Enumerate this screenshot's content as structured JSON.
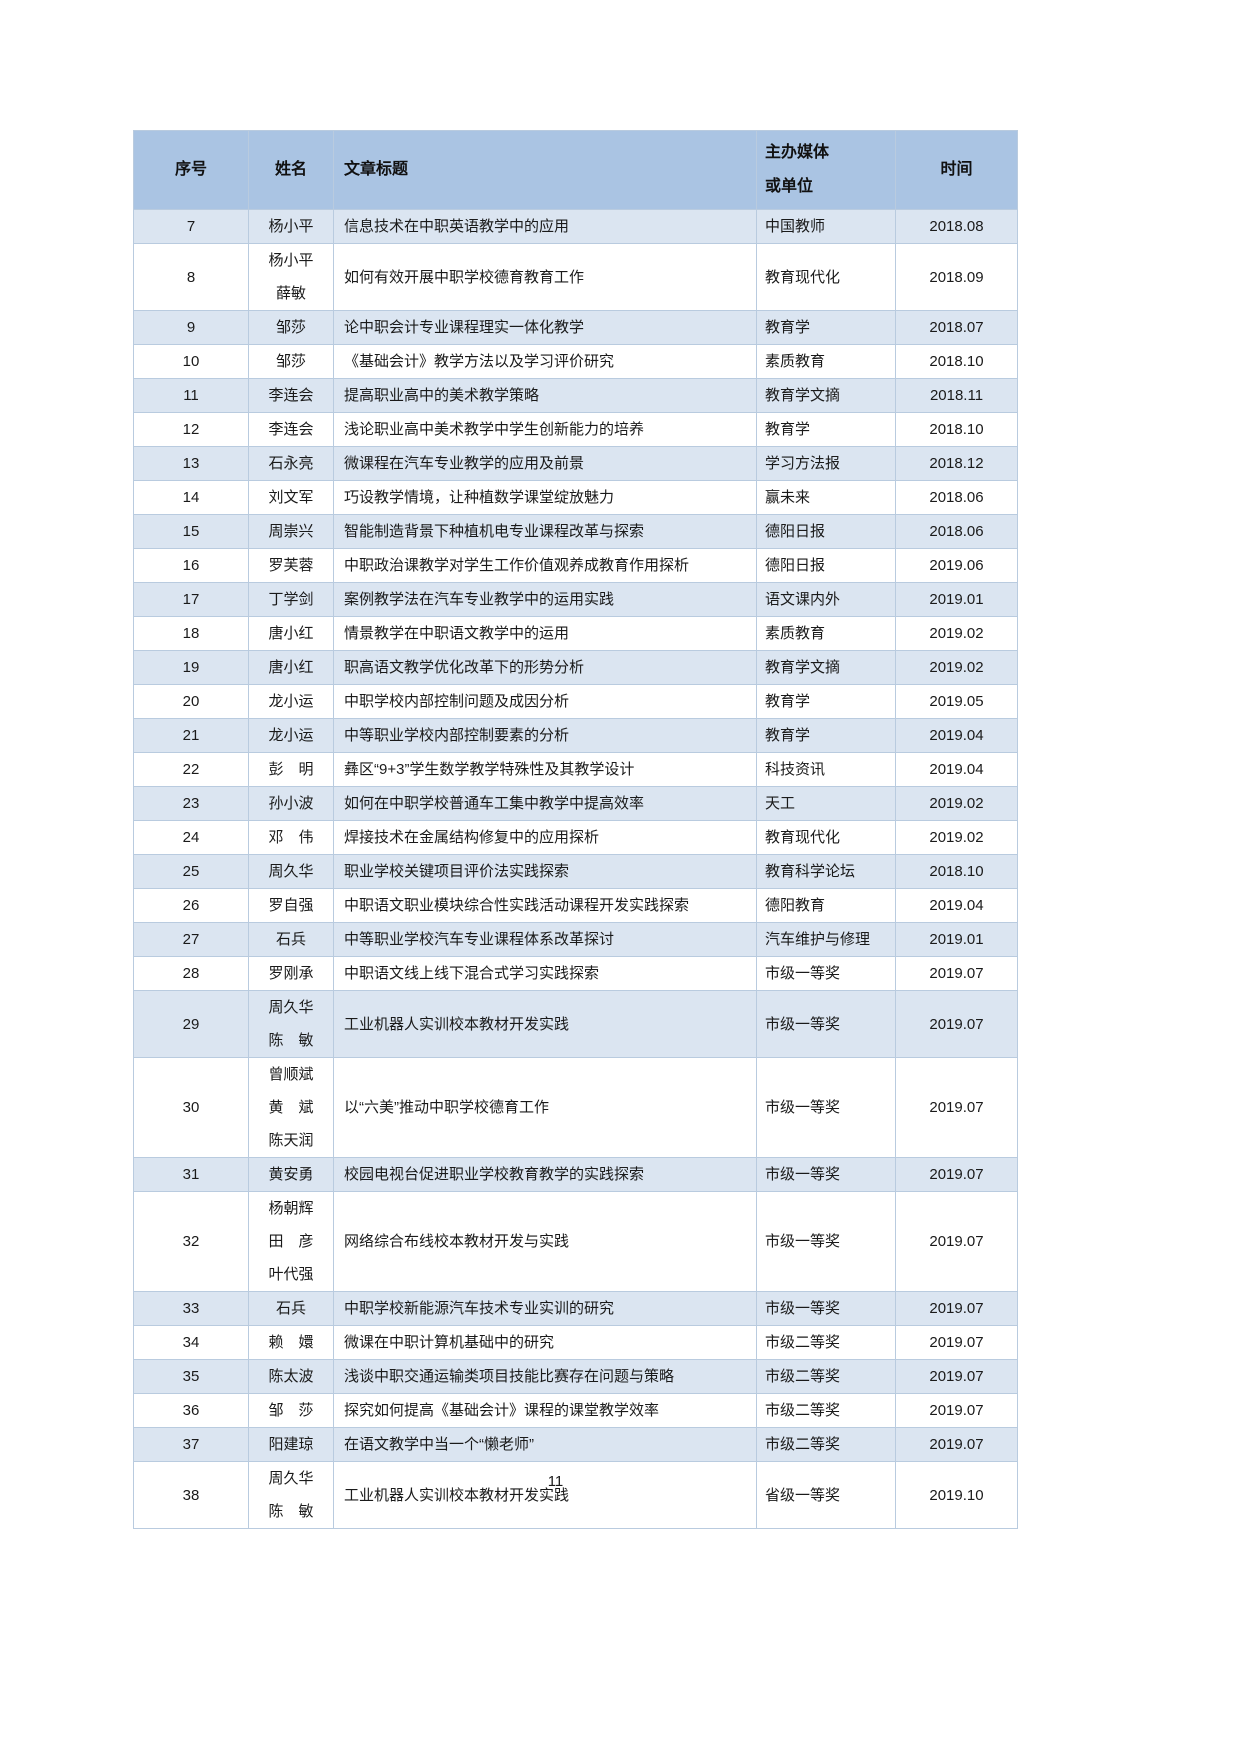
{
  "page": {
    "number": "11"
  },
  "colors": {
    "header_bg": "#aac4e3",
    "alt_row_bg": "#dbe5f1",
    "row_bg": "#ffffff",
    "border": "#b9cbdf",
    "text": "#1a1a1a"
  },
  "table": {
    "columns": [
      {
        "key": "no",
        "label": "序号"
      },
      {
        "key": "name",
        "label": "姓名"
      },
      {
        "key": "title",
        "label": "文章标题"
      },
      {
        "key": "media",
        "label": "主办媒体\n或单位"
      },
      {
        "key": "date",
        "label": "时间"
      }
    ],
    "rows": [
      {
        "no": "7",
        "name": "杨小平",
        "title": "信息技术在中职英语教学中的应用",
        "media": "中国教师",
        "date": "2018.08"
      },
      {
        "no": "8",
        "name": "杨小平\n薛敏",
        "title": "如何有效开展中职学校德育教育工作",
        "media": "教育现代化",
        "date": "2018.09"
      },
      {
        "no": "9",
        "name": "邹莎",
        "title": "论中职会计专业课程理实一体化教学",
        "media": "教育学",
        "date": "2018.07"
      },
      {
        "no": "10",
        "name": "邹莎",
        "title": "《基础会计》教学方法以及学习评价研究",
        "media": "素质教育",
        "date": "2018.10"
      },
      {
        "no": "11",
        "name": "李连会",
        "title": "提高职业高中的美术教学策略",
        "media": "教育学文摘",
        "date": "2018.11"
      },
      {
        "no": "12",
        "name": "李连会",
        "title": "浅论职业高中美术教学中学生创新能力的培养",
        "media": "教育学",
        "date": "2018.10"
      },
      {
        "no": "13",
        "name": "石永亮",
        "title": "微课程在汽车专业教学的应用及前景",
        "media": "学习方法报",
        "date": "2018.12"
      },
      {
        "no": "14",
        "name": "刘文军",
        "title": "巧设教学情境，让种植数学课堂绽放魅力",
        "media": "赢未来",
        "date": "2018.06"
      },
      {
        "no": "15",
        "name": "周崇兴",
        "title": "智能制造背景下种植机电专业课程改革与探索",
        "media": "德阳日报",
        "date": "2018.06"
      },
      {
        "no": "16",
        "name": "罗芙蓉",
        "title": "中职政治课教学对学生工作价值观养成教育作用探析",
        "media": "德阳日报",
        "date": "2019.06"
      },
      {
        "no": "17",
        "name": "丁学剑",
        "title": "案例教学法在汽车专业教学中的运用实践",
        "media": "语文课内外",
        "date": "2019.01"
      },
      {
        "no": "18",
        "name": "唐小红",
        "title": "情景教学在中职语文教学中的运用",
        "media": "素质教育",
        "date": "2019.02"
      },
      {
        "no": "19",
        "name": "唐小红",
        "title": "职高语文教学优化改革下的形势分析",
        "media": "教育学文摘",
        "date": "2019.02"
      },
      {
        "no": "20",
        "name": "龙小运",
        "title": "中职学校内部控制问题及成因分析",
        "media": "教育学",
        "date": "2019.05"
      },
      {
        "no": "21",
        "name": "龙小运",
        "title": "中等职业学校内部控制要素的分析",
        "media": "教育学",
        "date": "2019.04"
      },
      {
        "no": "22",
        "name": "彭　明",
        "title": "彝区“9+3”学生数学教学特殊性及其教学设计",
        "media": "科技资讯",
        "date": "2019.04"
      },
      {
        "no": "23",
        "name": "孙小波",
        "title": "如何在中职学校普通车工集中教学中提高效率",
        "media": "天工",
        "date": "2019.02"
      },
      {
        "no": "24",
        "name": "邓　伟",
        "title": "焊接技术在金属结构修复中的应用探析",
        "media": "教育现代化",
        "date": "2019.02"
      },
      {
        "no": "25",
        "name": "周久华",
        "title": "职业学校关键项目评价法实践探索",
        "media": "教育科学论坛",
        "date": "2018.10"
      },
      {
        "no": "26",
        "name": "罗自强",
        "title": "中职语文职业模块综合性实践活动课程开发实践探索",
        "media": "德阳教育",
        "date": "2019.04"
      },
      {
        "no": "27",
        "name": "石兵",
        "title": "中等职业学校汽车专业课程体系改革探讨",
        "media": "汽车维护与修理",
        "date": "2019.01"
      },
      {
        "no": "28",
        "name": "罗刚承",
        "title": "中职语文线上线下混合式学习实践探索",
        "media": "市级一等奖",
        "date": "2019.07"
      },
      {
        "no": "29",
        "name": "周久华\n陈　敏",
        "title": "工业机器人实训校本教材开发实践",
        "media": "市级一等奖",
        "date": "2019.07"
      },
      {
        "no": "30",
        "name": "曾顺斌\n黄　斌\n陈天润",
        "title": "以“六美”推动中职学校德育工作",
        "media": "市级一等奖",
        "date": "2019.07"
      },
      {
        "no": "31",
        "name": "黄安勇",
        "title": "校园电视台促进职业学校教育教学的实践探索",
        "media": "市级一等奖",
        "date": "2019.07"
      },
      {
        "no": "32",
        "name": "杨朝辉\n田　彦\n叶代强",
        "title": "网络综合布线校本教材开发与实践",
        "media": "市级一等奖",
        "date": "2019.07"
      },
      {
        "no": "33",
        "name": "石兵",
        "title": "中职学校新能源汽车技术专业实训的研究",
        "media": "市级一等奖",
        "date": "2019.07"
      },
      {
        "no": "34",
        "name": "赖　嬛",
        "title": "微课在中职计算机基础中的研究",
        "media": "市级二等奖",
        "date": "2019.07"
      },
      {
        "no": "35",
        "name": "陈太波",
        "title": "浅谈中职交通运输类项目技能比赛存在问题与策略",
        "media": "市级二等奖",
        "date": "2019.07"
      },
      {
        "no": "36",
        "name": "邹　莎",
        "title": "探究如何提高《基础会计》课程的课堂教学效率",
        "media": "市级二等奖",
        "date": "2019.07"
      },
      {
        "no": "37",
        "name": "阳建琼",
        "title": "在语文教学中当一个“懒老师”",
        "media": "市级二等奖",
        "date": "2019.07"
      },
      {
        "no": "38",
        "name": "周久华\n陈　敏",
        "title": "工业机器人实训校本教材开发实践",
        "media": "省级一等奖",
        "date": "2019.10"
      }
    ]
  }
}
